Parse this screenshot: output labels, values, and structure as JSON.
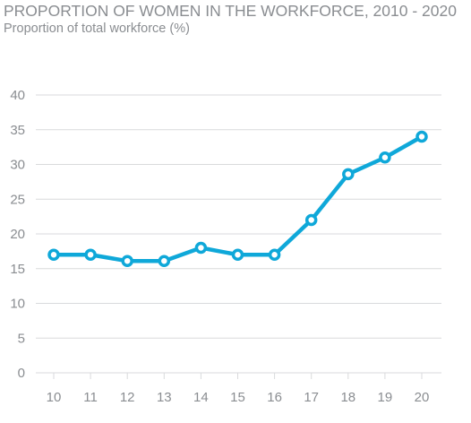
{
  "chart_data": {
    "type": "line",
    "title": "PROPORTION OF WOMEN IN THE WORKFORCE, 2010 - 2020",
    "subtitle": "Proportion of total workforce (%)",
    "xlabel": "",
    "ylabel": "",
    "categories": [
      "10",
      "11",
      "12",
      "13",
      "14",
      "15",
      "16",
      "17",
      "18",
      "19",
      "20"
    ],
    "series": [
      {
        "values": [
          17,
          17,
          16.1,
          16.1,
          18,
          17,
          17,
          22,
          28.6,
          31,
          34
        ]
      }
    ],
    "yticks": [
      0,
      5,
      10,
      15,
      20,
      25,
      30,
      35,
      40
    ],
    "ylim": [
      0,
      40
    ],
    "grid": true,
    "legend": "none"
  },
  "colors": {
    "line": "#0fa8d9",
    "marker_fill": "#ffffff",
    "grid": "#d9dadc",
    "text": "#8a8d91"
  }
}
